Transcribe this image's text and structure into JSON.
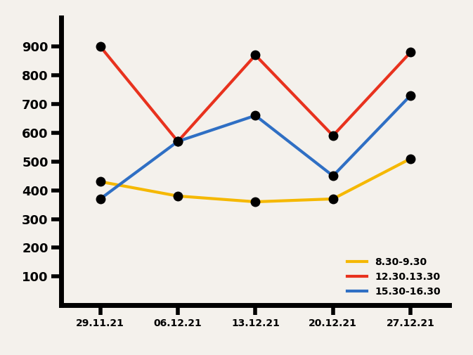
{
  "chart_data": {
    "type": "line",
    "categories": [
      "29.11.21",
      "06.12.21",
      "13.12.21",
      "20.12.21",
      "27.12.21"
    ],
    "series": [
      {
        "name": "8.30-9.30",
        "color": "#f5b800",
        "values": [
          430,
          380,
          360,
          370,
          510
        ],
        "marker": "o",
        "line_style": "solid"
      },
      {
        "name": "12.30.13.30",
        "color": "#e8321e",
        "values": [
          900,
          570,
          870,
          590,
          880
        ],
        "marker": "o",
        "line_style": "solid"
      },
      {
        "name": "15.30-16.30",
        "color": "#2f6fc4",
        "values": [
          370,
          570,
          660,
          450,
          730
        ],
        "marker": "o",
        "line_style": "solid"
      }
    ],
    "ylim": [
      0,
      1000
    ],
    "yticks": [
      100,
      200,
      300,
      400,
      500,
      600,
      700,
      800,
      900
    ],
    "grid": false,
    "legend": "lower right"
  }
}
